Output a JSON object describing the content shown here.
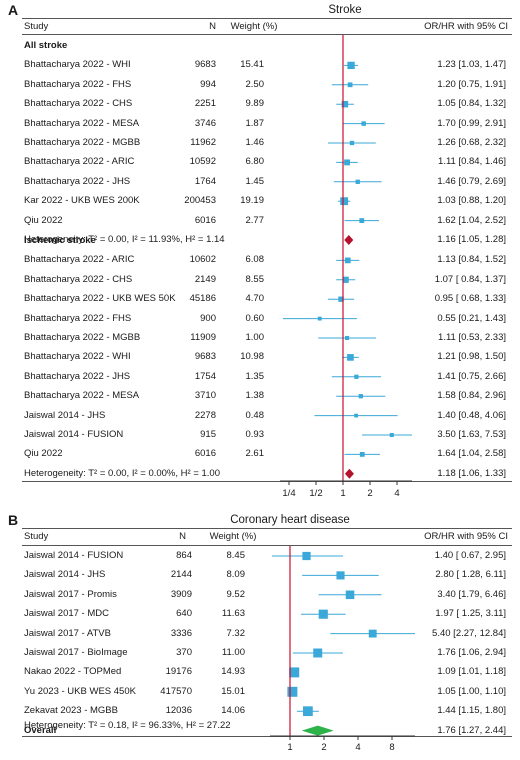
{
  "panelA": {
    "letter": "A",
    "title": "Stroke",
    "headers": {
      "study": "Study",
      "n": "N",
      "weight": "Weight (%)",
      "effect": "OR/HR with 95% CI"
    },
    "groups": [
      {
        "title": "All stroke",
        "rows": [
          {
            "study": "Bhattacharya 2022 - WHI",
            "n": "9683",
            "weight": "15.41",
            "ci_text": "1.23 [1.03, 1.47]",
            "est": 1.23,
            "lo": 1.03,
            "hi": 1.47
          },
          {
            "study": "Bhattacharya 2022 - FHS",
            "n": "994",
            "weight": "2.50",
            "ci_text": "1.20 [0.75, 1.91]",
            "est": 1.2,
            "lo": 0.75,
            "hi": 1.91
          },
          {
            "study": "Bhattacharya 2022 - CHS",
            "n": "2251",
            "weight": "9.89",
            "ci_text": "1.05 [0.84, 1.32]",
            "est": 1.05,
            "lo": 0.84,
            "hi": 1.32
          },
          {
            "study": "Bhattacharya 2022 - MESA",
            "n": "3746",
            "weight": "1.87",
            "ci_text": "1.70 [0.99, 2.91]",
            "est": 1.7,
            "lo": 0.99,
            "hi": 2.91
          },
          {
            "study": "Bhattacharya 2022 - MGBB",
            "n": "11962",
            "weight": "1.46",
            "ci_text": "1.26 [0.68, 2.32]",
            "est": 1.26,
            "lo": 0.68,
            "hi": 2.32
          },
          {
            "study": "Bhattacharya 2022 - ARIC",
            "n": "10592",
            "weight": "6.80",
            "ci_text": "1.11 [0.84, 1.46]",
            "est": 1.11,
            "lo": 0.84,
            "hi": 1.46
          },
          {
            "study": "Bhattacharya 2022 - JHS",
            "n": "1764",
            "weight": "1.45",
            "ci_text": "1.46 [0.79, 2.69]",
            "est": 1.46,
            "lo": 0.79,
            "hi": 2.69
          },
          {
            "study": "Kar 2022 - UKB WES 200K",
            "n": "200453",
            "weight": "19.19",
            "ci_text": "1.03 [0.88, 1.20]",
            "est": 1.03,
            "lo": 0.88,
            "hi": 1.2
          },
          {
            "study": "Qiu 2022",
            "n": "6016",
            "weight": "2.77",
            "ci_text": "1.62 [1.04, 2.52]",
            "est": 1.62,
            "lo": 1.04,
            "hi": 2.52
          }
        ],
        "summary": {
          "label": "Heterogeneity: T² = 0.00, I² = 11.93%, H² = 1.14",
          "ci_text": "1.16 [1.05, 1.28]",
          "est": 1.16,
          "lo": 1.05,
          "hi": 1.28
        }
      },
      {
        "title": "Ischemic stroke",
        "rows": [
          {
            "study": "Bhattacharya 2022 - ARIC",
            "n": "10602",
            "weight": "6.08",
            "ci_text": "1.13 [0.84, 1.52]",
            "est": 1.13,
            "lo": 0.84,
            "hi": 1.52
          },
          {
            "study": "Bhattacharya 2022 - CHS",
            "n": "2149",
            "weight": "8.55",
            "ci_text": "1.07 [ 0.84, 1.37]",
            "est": 1.07,
            "lo": 0.84,
            "hi": 1.37
          },
          {
            "study": "Bhattacharya 2022 - UKB WES 50K",
            "n": "45186",
            "weight": "4.70",
            "ci_text": "0.95 [ 0.68, 1.33]",
            "est": 0.95,
            "lo": 0.68,
            "hi": 1.33
          },
          {
            "study": "Bhattacharya 2022 - FHS",
            "n": "900",
            "weight": "0.60",
            "ci_text": "0.55 [0.21, 1.43]",
            "est": 0.55,
            "lo": 0.21,
            "hi": 1.43
          },
          {
            "study": "Bhattacharya 2022 - MGBB",
            "n": "11909",
            "weight": "1.00",
            "ci_text": "1.11 [0.53, 2.33]",
            "est": 1.11,
            "lo": 0.53,
            "hi": 2.33
          },
          {
            "study": "Bhattacharya 2022 - WHI",
            "n": "9683",
            "weight": "10.98",
            "ci_text": "1.21 [0.98, 1.50]",
            "est": 1.21,
            "lo": 0.98,
            "hi": 1.5
          },
          {
            "study": "Bhattacharya 2022 - JHS",
            "n": "1754",
            "weight": "1.35",
            "ci_text": "1.41 [0.75, 2.66]",
            "est": 1.41,
            "lo": 0.75,
            "hi": 2.66
          },
          {
            "study": "Bhattacharya 2022 - MESA",
            "n": "3710",
            "weight": "1.38",
            "ci_text": "1.58 [0.84, 2.96]",
            "est": 1.58,
            "lo": 0.84,
            "hi": 2.96
          },
          {
            "study": "Jaiswal 2014 - JHS",
            "n": "2278",
            "weight": "0.48",
            "ci_text": "1.40 [0.48, 4.06]",
            "est": 1.4,
            "lo": 0.48,
            "hi": 4.06
          },
          {
            "study": "Jaiswal 2014 - FUSION",
            "n": "915",
            "weight": "0.93",
            "ci_text": "3.50 [1.63, 7.53]",
            "est": 3.5,
            "lo": 1.63,
            "hi": 7.53
          },
          {
            "study": "Qiu 2022",
            "n": "6016",
            "weight": "2.61",
            "ci_text": "1.64 [1.04, 2.58]",
            "est": 1.64,
            "lo": 1.04,
            "hi": 2.58
          }
        ],
        "summary": {
          "label": "Heterogeneity: T² = 0.00, I² = 0.00%, H² = 1.00",
          "ci_text": "1.18 [1.06, 1.33]",
          "est": 1.18,
          "lo": 1.06,
          "hi": 1.33
        }
      }
    ],
    "axis_ticks": [
      {
        "label": "1/4",
        "value": 0.25
      },
      {
        "label": "1/2",
        "value": 0.5
      },
      {
        "label": "1",
        "value": 1
      },
      {
        "label": "2",
        "value": 2
      },
      {
        "label": "4",
        "value": 4
      }
    ]
  },
  "panelB": {
    "letter": "B",
    "title": "Coronary heart disease",
    "headers": {
      "study": "Study",
      "n": "N",
      "weight": "Weight (%)",
      "effect": "OR/HR with 95% CI"
    },
    "rows": [
      {
        "study": "Jaiswal 2014 - FUSION",
        "n": "864",
        "weight": "8.45",
        "ci_text": "1.40 [ 0.67, 2.95]",
        "est": 1.4,
        "lo": 0.67,
        "hi": 2.95
      },
      {
        "study": "Jaiswal 2014 - JHS",
        "n": "2144",
        "weight": "8.09",
        "ci_text": "2.80 [ 1.28, 6.11]",
        "est": 2.8,
        "lo": 1.28,
        "hi": 6.11
      },
      {
        "study": "Jaiswal 2017 - Promis",
        "n": "3909",
        "weight": "9.52",
        "ci_text": "3.40 [1.79, 6.46]",
        "est": 3.4,
        "lo": 1.79,
        "hi": 6.46
      },
      {
        "study": "Jaiswal 2017 - MDC",
        "n": "640",
        "weight": "11.63",
        "ci_text": "1.97 [ 1.25, 3.11]",
        "est": 1.97,
        "lo": 1.25,
        "hi": 3.11
      },
      {
        "study": "Jaiswal 2017 - ATVB",
        "n": "3336",
        "weight": "7.32",
        "ci_text": "5.40 [2.27, 12.84]",
        "est": 5.4,
        "lo": 2.27,
        "hi": 12.84
      },
      {
        "study": "Jaiswal 2017 - BioImage",
        "n": "370",
        "weight": "11.00",
        "ci_text": "1.76 [1.06, 2.94]",
        "est": 1.76,
        "lo": 1.06,
        "hi": 2.94
      },
      {
        "study": "Nakao 2022 - TOPMed",
        "n": "19176",
        "weight": "14.93",
        "ci_text": "1.09 [1.01, 1.18]",
        "est": 1.09,
        "lo": 1.01,
        "hi": 1.18
      },
      {
        "study": "Yu 2023 - UKB WES 450K",
        "n": "417570",
        "weight": "15.01",
        "ci_text": "1.05 [1.00, 1.10]",
        "est": 1.05,
        "lo": 1.0,
        "hi": 1.1
      },
      {
        "study": "Zekavat 2023 - MGBB",
        "n": "12036",
        "weight": "14.06",
        "ci_text": "1.44 [1.15, 1.80]",
        "est": 1.44,
        "lo": 1.15,
        "hi": 1.8
      }
    ],
    "overall": {
      "label": "Overall",
      "ci_text": "1.76 [1.27, 2.44]",
      "est": 1.76,
      "lo": 1.27,
      "hi": 2.44
    },
    "heterogeneity": "Heterogeneity: T² = 0.18, I² = 96.33%, H² = 27.22",
    "axis_ticks": [
      {
        "label": "1",
        "value": 1
      },
      {
        "label": "2",
        "value": 2
      },
      {
        "label": "4",
        "value": 4
      },
      {
        "label": "8",
        "value": 8
      }
    ]
  },
  "colors": {
    "marker": "#3aa8d8",
    "ci_line": "#3aa8d8",
    "reference_line": "#c8102e",
    "summary_diamond_a": "#b5122e",
    "summary_diamond_b": "#2db34a",
    "text": "#1a1a1a"
  },
  "chart_data": [
    {
      "type": "forest",
      "title": "Stroke",
      "scale": "log",
      "reference_value": 1,
      "x_ticks": [
        "1/4",
        "1/2",
        "1",
        "2",
        "4"
      ],
      "groups": [
        {
          "name": "All stroke",
          "studies": [
            "Bhattacharya 2022 - WHI",
            "Bhattacharya 2022 - FHS",
            "Bhattacharya 2022 - CHS",
            "Bhattacharya 2022 - MESA",
            "Bhattacharya 2022 - MGBB",
            "Bhattacharya 2022 - ARIC",
            "Bhattacharya 2022 - JHS",
            "Kar 2022 - UKB WES 200K",
            "Qiu 2022"
          ],
          "n": [
            9683,
            994,
            2251,
            3746,
            11962,
            10592,
            1764,
            200453,
            6016
          ],
          "weight": [
            15.41,
            2.5,
            9.89,
            1.87,
            1.46,
            6.8,
            1.45,
            19.19,
            2.77
          ],
          "estimate": [
            1.23,
            1.2,
            1.05,
            1.7,
            1.26,
            1.11,
            1.46,
            1.03,
            1.62
          ],
          "ci_low": [
            1.03,
            0.75,
            0.84,
            0.99,
            0.68,
            0.84,
            0.79,
            0.88,
            1.04
          ],
          "ci_high": [
            1.47,
            1.91,
            1.32,
            2.91,
            2.32,
            1.46,
            2.69,
            1.2,
            2.52
          ],
          "pooled": {
            "estimate": 1.16,
            "ci_low": 1.05,
            "ci_high": 1.28,
            "tau2": 0.0,
            "i2": 11.93,
            "h2": 1.14
          }
        },
        {
          "name": "Ischemic stroke",
          "studies": [
            "Bhattacharya 2022 - ARIC",
            "Bhattacharya 2022 - CHS",
            "Bhattacharya 2022 - UKB WES 50K",
            "Bhattacharya 2022 - FHS",
            "Bhattacharya 2022 - MGBB",
            "Bhattacharya 2022 - WHI",
            "Bhattacharya 2022 - JHS",
            "Bhattacharya 2022 - MESA",
            "Jaiswal 2014 - JHS",
            "Jaiswal 2014 - FUSION",
            "Qiu 2022"
          ],
          "n": [
            10602,
            2149,
            45186,
            900,
            11909,
            9683,
            1754,
            3710,
            2278,
            915,
            6016
          ],
          "weight": [
            6.08,
            8.55,
            4.7,
            0.6,
            1.0,
            10.98,
            1.35,
            1.38,
            0.48,
            0.93,
            2.61
          ],
          "estimate": [
            1.13,
            1.07,
            0.95,
            0.55,
            1.11,
            1.21,
            1.41,
            1.58,
            1.4,
            3.5,
            1.64
          ],
          "ci_low": [
            0.84,
            0.84,
            0.68,
            0.21,
            0.53,
            0.98,
            0.75,
            0.84,
            0.48,
            1.63,
            1.04
          ],
          "ci_high": [
            1.52,
            1.37,
            1.33,
            1.43,
            2.33,
            1.5,
            2.66,
            2.96,
            4.06,
            7.53,
            2.58
          ],
          "pooled": {
            "estimate": 1.18,
            "ci_low": 1.06,
            "ci_high": 1.33,
            "tau2": 0.0,
            "i2": 0.0,
            "h2": 1.0
          }
        }
      ]
    },
    {
      "type": "forest",
      "title": "Coronary heart disease",
      "scale": "log",
      "reference_value": 1,
      "x_ticks": [
        "1",
        "2",
        "4",
        "8"
      ],
      "studies": [
        "Jaiswal 2014 - FUSION",
        "Jaiswal 2014 - JHS",
        "Jaiswal 2017 - Promis",
        "Jaiswal 2017 - MDC",
        "Jaiswal 2017 - ATVB",
        "Jaiswal 2017 - BioImage",
        "Nakao 2022 - TOPMed",
        "Yu 2023 - UKB WES 450K",
        "Zekavat 2023 - MGBB"
      ],
      "n": [
        864,
        2144,
        3909,
        640,
        3336,
        370,
        19176,
        417570,
        12036
      ],
      "weight": [
        8.45,
        8.09,
        9.52,
        11.63,
        7.32,
        11.0,
        14.93,
        15.01,
        14.06
      ],
      "estimate": [
        1.4,
        2.8,
        3.4,
        1.97,
        5.4,
        1.76,
        1.09,
        1.05,
        1.44
      ],
      "ci_low": [
        0.67,
        1.28,
        1.79,
        1.25,
        2.27,
        1.06,
        1.01,
        1.0,
        1.15
      ],
      "ci_high": [
        2.95,
        6.11,
        6.46,
        3.11,
        12.84,
        2.94,
        1.18,
        1.1,
        1.8
      ],
      "pooled": {
        "estimate": 1.76,
        "ci_low": 1.27,
        "ci_high": 2.44,
        "tau2": 0.18,
        "i2": 96.33,
        "h2": 27.22
      }
    }
  ]
}
